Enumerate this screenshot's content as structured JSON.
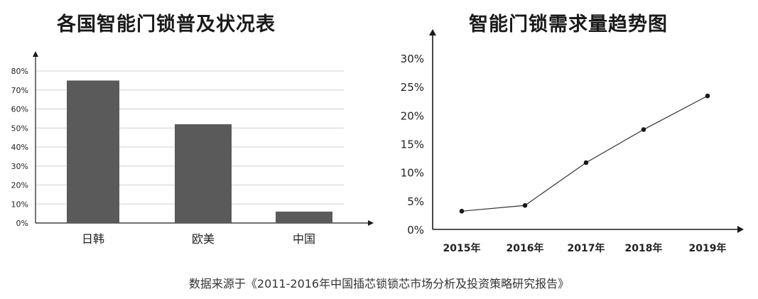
{
  "source_note": "数据来源于《2011-2016年中国插芯锁锁芯市场分析及投资策略研究报告》",
  "colors": {
    "bar": "#5a5a5a",
    "grid": "#d0d0d0",
    "axis": "#1a1a1a",
    "line": "#333333",
    "point": "#1a1a1a"
  },
  "chart_data": [
    {
      "type": "bar",
      "title": "各国智能门锁普及状况表",
      "categories": [
        "日韩",
        "欧美",
        "中国"
      ],
      "values": [
        75,
        52,
        6
      ],
      "ylim": [
        0,
        80
      ],
      "yticks": [
        0,
        10,
        20,
        30,
        40,
        50,
        60,
        70,
        80
      ],
      "ytick_labels": [
        "0%",
        "10%",
        "20%",
        "30%",
        "40%",
        "50%",
        "60%",
        "70%",
        "80%"
      ],
      "grid": true,
      "xlabel": "",
      "ylabel": ""
    },
    {
      "type": "line",
      "title": "智能门锁需求量趋势图",
      "x": [
        "2015年",
        "2016年",
        "2017年",
        "2018年",
        "2019年"
      ],
      "values": [
        3.2,
        4.2,
        11.7,
        17.5,
        23.4
      ],
      "ylim": [
        0,
        30
      ],
      "yticks": [
        0,
        5,
        10,
        15,
        20,
        25,
        30
      ],
      "ytick_labels": [
        "0%",
        "5%",
        "10%",
        "15%",
        "20%",
        "25%",
        "30%"
      ],
      "grid": false,
      "xlabel": "",
      "ylabel": ""
    }
  ]
}
